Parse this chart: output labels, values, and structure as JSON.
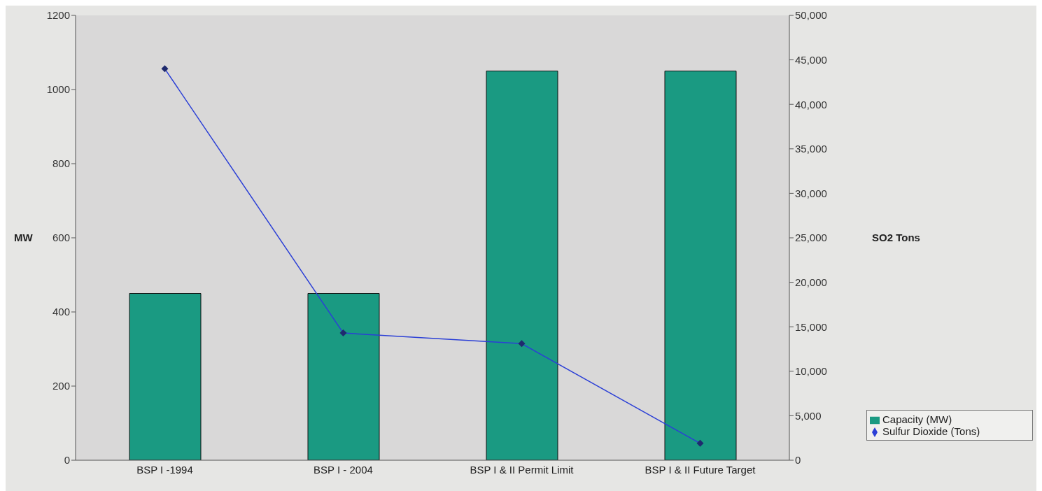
{
  "chart_data": {
    "type": "bar",
    "categories": [
      "BSP I -1994",
      "BSP I - 2004",
      "BSP I & II Permit Limit",
      "BSP I & II Future Target"
    ],
    "series": [
      {
        "name": "Capacity (MW)",
        "color": "#1a9a82",
        "values": [
          450,
          450,
          1050,
          1050
        ]
      },
      {
        "name": "Sulfur Dioxide (Tons)",
        "type": "line",
        "axis": "y2",
        "color": "#2b3fd6",
        "marker": "diamond",
        "values": [
          44000,
          14300,
          13100,
          1900
        ]
      }
    ],
    "ylabel": "MW",
    "y2label": "SO2 Tons",
    "ylim": [
      0,
      1200
    ],
    "yticks": [
      0,
      200,
      400,
      600,
      800,
      1000,
      1200
    ],
    "y2lim": [
      0,
      50000
    ],
    "y2ticks": [
      {
        "value": 0,
        "label": "0"
      },
      {
        "value": 5000,
        "label": "5,000"
      },
      {
        "value": 10000,
        "label": "10,000"
      },
      {
        "value": 15000,
        "label": "15,000"
      },
      {
        "value": 20000,
        "label": "20,000"
      },
      {
        "value": 25000,
        "label": "25,000"
      },
      {
        "value": 30000,
        "label": "30,000"
      },
      {
        "value": 35000,
        "label": "35,000"
      },
      {
        "value": 40000,
        "label": "40,000"
      },
      {
        "value": 45000,
        "label": "45,000"
      },
      {
        "value": 50000,
        "label": "50,000"
      }
    ],
    "grid": false,
    "legend": "bottom right"
  }
}
